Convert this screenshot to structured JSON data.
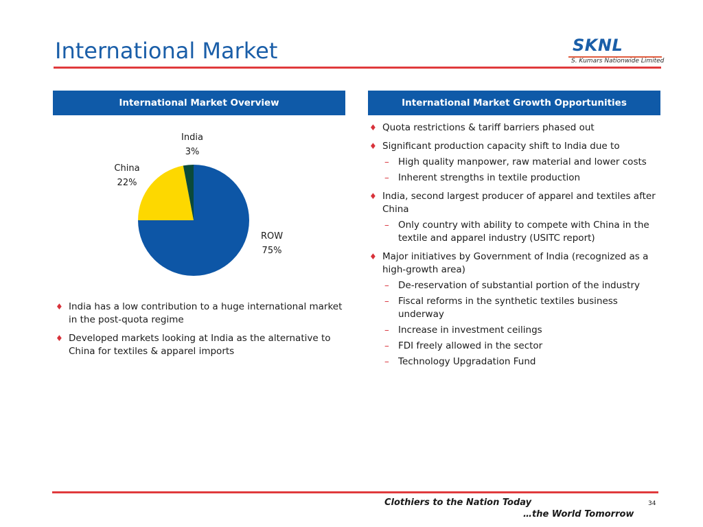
{
  "slide": {
    "title": "International Market",
    "page_number": "34"
  },
  "logo": {
    "name": "SKNL",
    "subtitle": "S. Kumars Nationwide Limited",
    "colors": {
      "text": "#1a5ea8",
      "rule": "#e05a3c"
    }
  },
  "left_panel": {
    "header": "International Market Overview",
    "bullets": [
      {
        "text": "India has a low contribution to a huge international market in the post-quota regime"
      },
      {
        "text": "Developed markets looking at India as the alternative to China for textiles & apparel imports"
      }
    ]
  },
  "right_panel": {
    "header": "International Market Growth Opportunities",
    "bullets": [
      {
        "text": "Quota restrictions & tariff barriers phased out",
        "sub": []
      },
      {
        "text": "Significant production capacity shift to India due to",
        "sub": [
          "High quality manpower, raw material and lower costs",
          "Inherent strengths in textile production"
        ]
      },
      {
        "text": "India, second largest producer of apparel and textiles after China",
        "sub": [
          "Only country with ability to compete with China in the textile and apparel industry (USITC report)"
        ]
      },
      {
        "text": "Major initiatives by Government of India (recognized as a high-growth area)",
        "sub": [
          "De-reservation of substantial portion of the industry",
          "Fiscal reforms in the synthetic textiles business underway",
          "Increase in investment ceilings",
          "FDI freely allowed in the sector",
          "Technology Upgradation Fund"
        ]
      }
    ]
  },
  "chart_data": {
    "type": "pie",
    "title": "",
    "legend": "none",
    "slices": [
      {
        "label": "ROW",
        "value": 75,
        "display": "75%",
        "color": "#0d56a6"
      },
      {
        "label": "China",
        "value": 22,
        "display": "22%",
        "color": "#fdd800"
      },
      {
        "label": "India",
        "value": 3,
        "display": "3%",
        "color": "#0b4a3a"
      }
    ]
  },
  "footer": {
    "line1": "Clothiers to the Nation Today",
    "line2": "…the World Tomorrow"
  },
  "colors": {
    "accent_blue": "#0f5aa8",
    "accent_red": "#e03a3c",
    "bullet_red": "#d8323a"
  }
}
